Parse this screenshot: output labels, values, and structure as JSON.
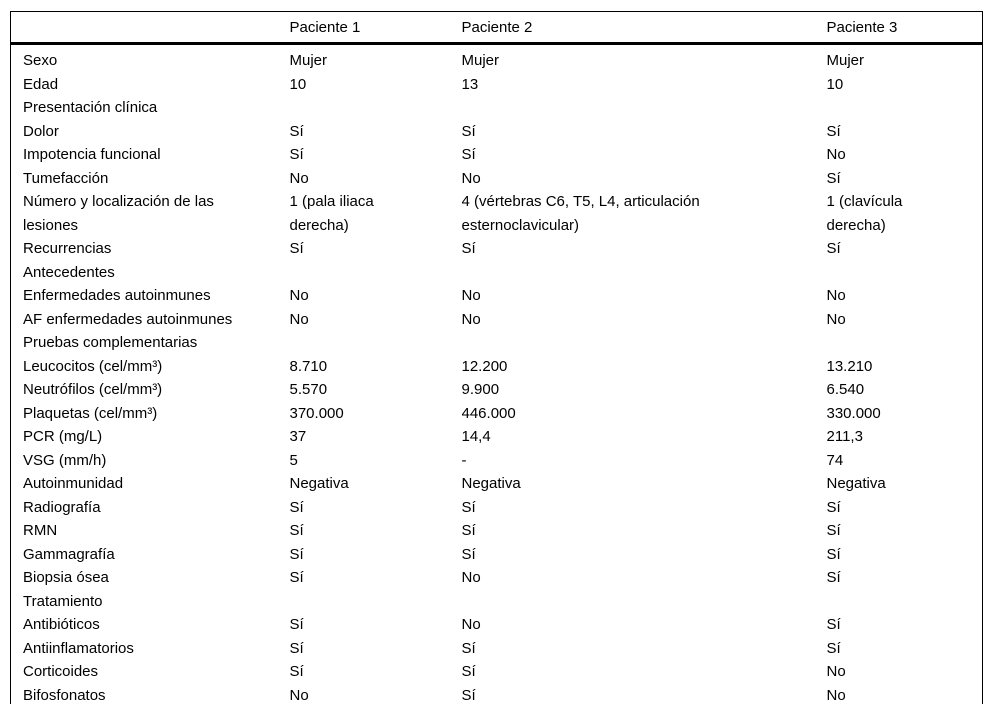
{
  "table": {
    "columns": [
      "",
      "Paciente 1",
      "Paciente 2",
      "Paciente 3"
    ],
    "rows": [
      {
        "label": "Sexo",
        "values": [
          "Mujer",
          "Mujer",
          "Mujer"
        ]
      },
      {
        "label": "Edad",
        "values": [
          "10",
          "13",
          "10"
        ]
      },
      {
        "label": "Presentación clínica",
        "section": true,
        "values": [
          "",
          "",
          ""
        ]
      },
      {
        "label": "Dolor",
        "values": [
          "Sí",
          "Sí",
          "Sí"
        ]
      },
      {
        "label": "Impotencia funcional",
        "values": [
          "Sí",
          "Sí",
          "No"
        ]
      },
      {
        "label": "Tumefacción",
        "values": [
          "No",
          "No",
          "Sí"
        ]
      },
      {
        "label": "Número y localización de las lesiones",
        "values": [
          "1 (pala iliaca derecha)",
          "4 (vértebras C6, T5, L4, articulación esternoclavicular)",
          "1 (clavícula derecha)"
        ]
      },
      {
        "label": "Recurrencias",
        "values": [
          "Sí",
          "Sí",
          "Sí"
        ]
      },
      {
        "label": "Antecedentes",
        "section": true,
        "values": [
          "",
          "",
          ""
        ]
      },
      {
        "label": "Enfermedades autoinmunes",
        "values": [
          "No",
          "No",
          "No"
        ]
      },
      {
        "label": "AF enfermedades autoinmunes",
        "values": [
          "No",
          "No",
          "No"
        ]
      },
      {
        "label": "Pruebas complementarias",
        "section": true,
        "values": [
          "",
          "",
          ""
        ]
      },
      {
        "label": "Leucocitos (cel/mm³)",
        "values": [
          "8.710",
          "12.200",
          "13.210"
        ]
      },
      {
        "label": "Neutrófilos (cel/mm³)",
        "values": [
          "5.570",
          "9.900",
          "6.540"
        ]
      },
      {
        "label": "Plaquetas (cel/mm³)",
        "values": [
          "370.000",
          "446.000",
          "330.000"
        ]
      },
      {
        "label": "PCR (mg/L)",
        "values": [
          "37",
          "14,4",
          "211,3"
        ]
      },
      {
        "label": "VSG (mm/h)",
        "values": [
          "5",
          "-",
          "74"
        ]
      },
      {
        "label": "Autoinmunidad",
        "values": [
          "Negativa",
          "Negativa",
          "Negativa"
        ]
      },
      {
        "label": "Radiografía",
        "values": [
          "Sí",
          "Sí",
          "Sí"
        ]
      },
      {
        "label": "RMN",
        "values": [
          "Sí",
          "Sí",
          "Sí"
        ]
      },
      {
        "label": "Gammagrafía",
        "values": [
          "Sí",
          "Sí",
          "Sí"
        ]
      },
      {
        "label": "Biopsia ósea",
        "values": [
          "Sí",
          "No",
          "Sí"
        ]
      },
      {
        "label": "Tratamiento",
        "section": true,
        "values": [
          "",
          "",
          ""
        ]
      },
      {
        "label": "Antibióticos",
        "values": [
          "Sí",
          "No",
          "Sí"
        ]
      },
      {
        "label": "Antiinflamatorios",
        "values": [
          "Sí",
          "Sí",
          "Sí"
        ]
      },
      {
        "label": "Corticoides",
        "values": [
          "Sí",
          "Sí",
          "No"
        ]
      },
      {
        "label": "Bifosfonatos",
        "values": [
          "No",
          "Sí",
          "No"
        ]
      }
    ]
  }
}
